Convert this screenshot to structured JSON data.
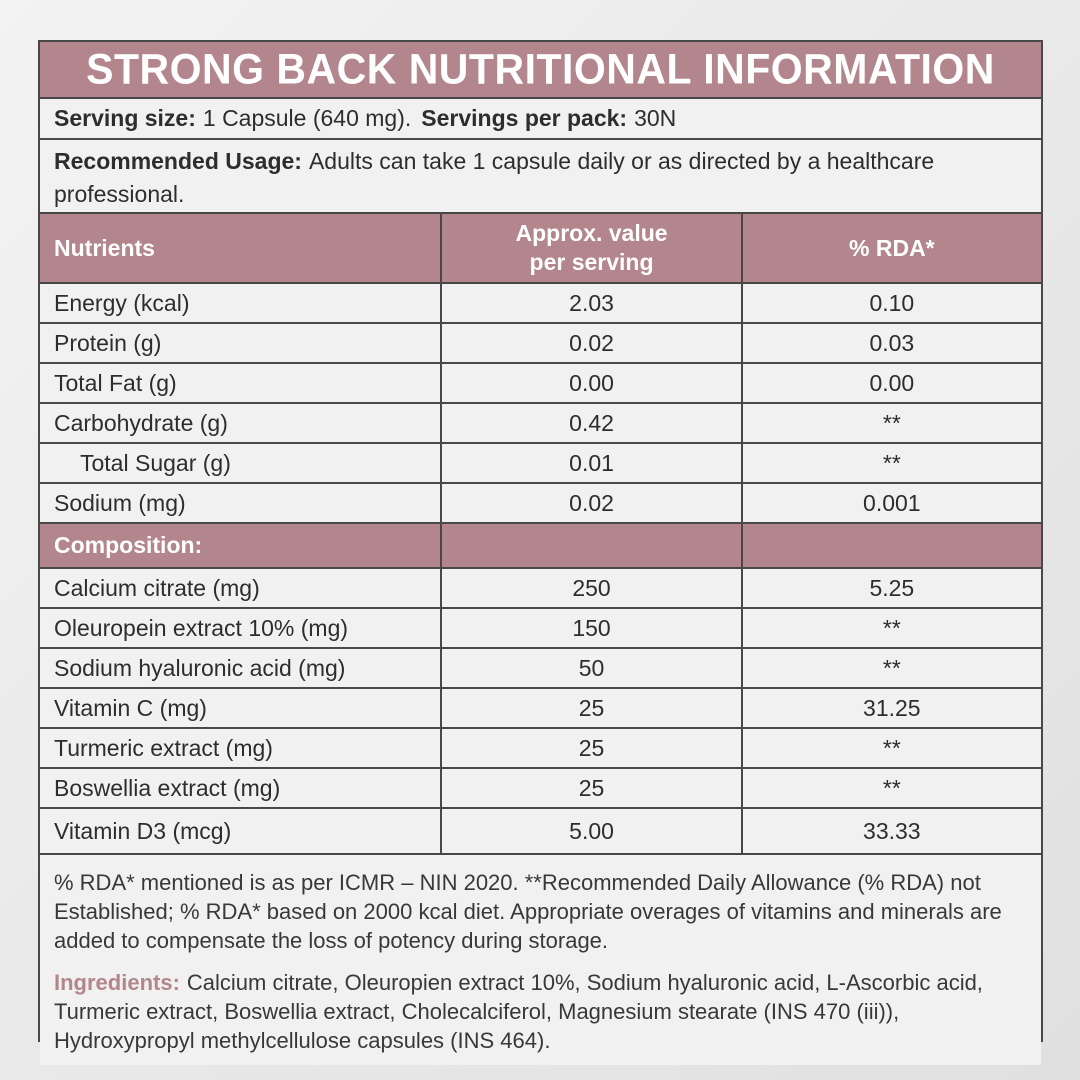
{
  "title": "STRONG BACK NUTRITIONAL INFORMATION",
  "serving": {
    "size_label": "Serving size:",
    "size_value": "1 Capsule (640 mg).",
    "pack_label": "Servings per pack:",
    "pack_value": "30N"
  },
  "usage": {
    "label": "Recommended Usage:",
    "text": "Adults can take 1 capsule daily or as directed by a healthcare professional."
  },
  "table": {
    "columns": [
      "Nutrients",
      "Approx. value per serving",
      "% RDA*"
    ],
    "approx_header": "Approx. value\nper serving",
    "nutrients": [
      {
        "name": "Energy (kcal)",
        "value": "2.03",
        "rda": "0.10"
      },
      {
        "name": "Protein (g)",
        "value": "0.02",
        "rda": "0.03"
      },
      {
        "name": "Total Fat (g)",
        "value": "0.00",
        "rda": "0.00"
      },
      {
        "name": "Carbohydrate (g)",
        "value": "0.42",
        "rda": "**"
      },
      {
        "name": "Total Sugar (g)",
        "value": "0.01",
        "rda": "**",
        "indent": true
      },
      {
        "name": "Sodium (mg)",
        "value": "0.02",
        "rda": "0.001"
      }
    ],
    "composition_label": "Composition:",
    "composition": [
      {
        "name": "Calcium citrate (mg)",
        "value": "250",
        "rda": "5.25"
      },
      {
        "name": "Oleuropein extract 10% (mg)",
        "value": "150",
        "rda": "**"
      },
      {
        "name": "Sodium hyaluronic acid (mg)",
        "value": "50",
        "rda": "**"
      },
      {
        "name": "Vitamin C (mg)",
        "value": "25",
        "rda": "31.25"
      },
      {
        "name": "Turmeric extract (mg)",
        "value": "25",
        "rda": "**"
      },
      {
        "name": "Boswellia extract (mg)",
        "value": "25",
        "rda": "**"
      },
      {
        "name": "Vitamin D3 (mcg)",
        "value": "5.00",
        "rda": "33.33",
        "tall": true
      }
    ]
  },
  "footnote": "% RDA* mentioned is as per ICMR – NIN 2020. **Recommended Daily Allowance (% RDA) not Established; % RDA* based on 2000 kcal diet. Appropriate overages of vitamins and minerals are added to compensate the loss of potency during storage.",
  "ingredients": {
    "label": "Ingredients:",
    "text": "Calcium citrate, Oleuropien extract 10%, Sodium hyaluronic acid, L-Ascorbic acid, Turmeric extract, Boswellia extract, Cholecalciferol, Magnesium stearate (INS 470 (iii)), Hydroxypropyl methylcellulose capsules (INS 464)."
  },
  "colors": {
    "accent": "#b3868d",
    "row_background": "#f2f1f1",
    "border": "#484848",
    "text": "#2e2d2d"
  }
}
